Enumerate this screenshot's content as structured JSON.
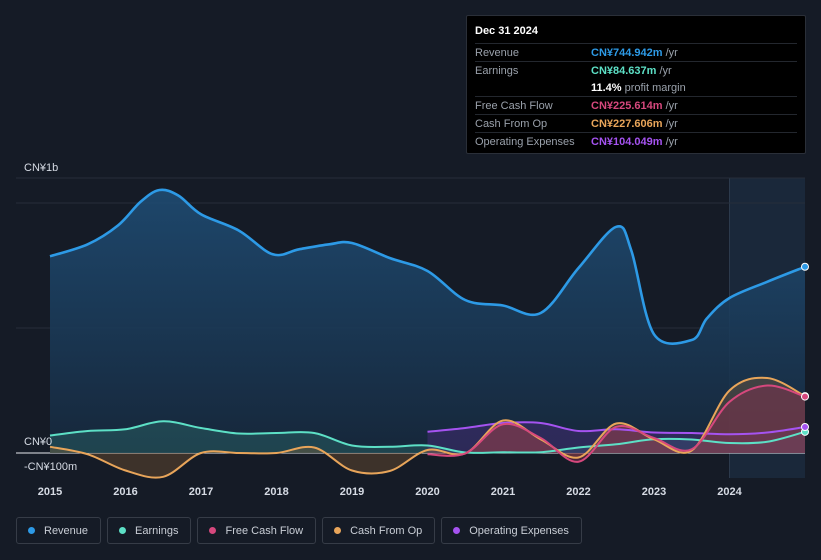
{
  "tooltip": {
    "date": "Dec 31 2024",
    "rows": [
      {
        "label": "Revenue",
        "value": "CN¥744.942m",
        "unit": "/yr",
        "color": "#2d9ae6"
      },
      {
        "label": "Earnings",
        "value": "CN¥84.637m",
        "unit": "/yr",
        "color": "#5de0c6"
      },
      {
        "label": "",
        "value": "11.4%",
        "unit": "profit margin",
        "color": "#ffffff"
      },
      {
        "label": "Free Cash Flow",
        "value": "CN¥225.614m",
        "unit": "/yr",
        "color": "#d6487d"
      },
      {
        "label": "Cash From Op",
        "value": "CN¥227.606m",
        "unit": "/yr",
        "color": "#e8a55a"
      },
      {
        "label": "Operating Expenses",
        "value": "CN¥104.049m",
        "unit": "/yr",
        "color": "#a553f0"
      }
    ]
  },
  "legend": [
    {
      "label": "Revenue",
      "color": "#2d9ae6"
    },
    {
      "label": "Earnings",
      "color": "#5de0c6"
    },
    {
      "label": "Free Cash Flow",
      "color": "#d6487d"
    },
    {
      "label": "Cash From Op",
      "color": "#e8a55a"
    },
    {
      "label": "Operating Expenses",
      "color": "#a553f0"
    }
  ],
  "chart_data": {
    "type": "line",
    "title": "",
    "y_top_label": "CN¥1b",
    "y_zero_label": "CN¥0",
    "y_bottom_label": "-CN¥100m",
    "ylim": [
      -100,
      1100
    ],
    "x_ticks": [
      "2015",
      "2016",
      "2017",
      "2018",
      "2019",
      "2020",
      "2021",
      "2022",
      "2023",
      "2024"
    ],
    "xlim": [
      2014.55,
      2025.0
    ],
    "forecast_start": 2024.0,
    "series": [
      {
        "name": "Revenue",
        "color": "#2d9ae6",
        "x": [
          2015.0,
          2015.5,
          2015.9,
          2016.2,
          2016.45,
          2016.7,
          2017.0,
          2017.5,
          2017.95,
          2018.3,
          2018.7,
          2019.0,
          2019.5,
          2020.0,
          2020.5,
          2021.0,
          2021.5,
          2022.0,
          2022.5,
          2022.7,
          2023.0,
          2023.5,
          2023.7,
          2024.0,
          2024.5,
          2025.0
        ],
        "y": [
          787,
          835,
          910,
          1005,
          1052,
          1030,
          955,
          890,
          795,
          815,
          835,
          840,
          780,
          728,
          612,
          590,
          560,
          740,
          905,
          810,
          475,
          452,
          538,
          620,
          685,
          744.942
        ]
      },
      {
        "name": "Earnings",
        "color": "#5de0c6",
        "x": [
          2015.0,
          2015.5,
          2016.0,
          2016.5,
          2017.0,
          2017.5,
          2018.0,
          2018.5,
          2019.0,
          2019.5,
          2020.0,
          2020.5,
          2021.0,
          2021.5,
          2022.0,
          2022.5,
          2023.0,
          2023.5,
          2024.0,
          2024.5,
          2025.0
        ],
        "y": [
          70,
          88,
          95,
          127,
          100,
          78,
          80,
          80,
          30,
          25,
          30,
          2,
          3,
          3,
          22,
          35,
          55,
          54,
          40,
          45,
          84.637
        ]
      },
      {
        "name": "Free Cash Flow",
        "color": "#d6487d",
        "x": [
          2020.0,
          2020.5,
          2021.0,
          2021.5,
          2022.0,
          2022.5,
          2023.0,
          2023.5,
          2024.0,
          2024.5,
          2025.0
        ],
        "y": [
          -5,
          -2,
          115,
          60,
          -35,
          105,
          60,
          15,
          205,
          270,
          225.614
        ]
      },
      {
        "name": "Cash From Op",
        "color": "#e8a55a",
        "x": [
          2015.0,
          2015.5,
          2016.0,
          2016.5,
          2017.0,
          2017.5,
          2018.0,
          2018.5,
          2019.0,
          2019.5,
          2020.0,
          2020.5,
          2021.0,
          2021.5,
          2022.0,
          2022.5,
          2023.0,
          2023.5,
          2024.0,
          2024.5,
          2025.0
        ],
        "y": [
          25,
          -5,
          -70,
          -95,
          0,
          0,
          0,
          22,
          -70,
          -72,
          12,
          -2,
          130,
          55,
          -18,
          118,
          55,
          10,
          250,
          300,
          227.606
        ]
      },
      {
        "name": "Operating Expenses",
        "color": "#a553f0",
        "x": [
          2020.0,
          2020.5,
          2021.0,
          2021.5,
          2022.0,
          2022.5,
          2023.0,
          2023.5,
          2024.0,
          2024.5,
          2025.0
        ],
        "y": [
          85,
          100,
          120,
          120,
          88,
          95,
          82,
          80,
          75,
          82,
          104.049
        ]
      }
    ]
  }
}
